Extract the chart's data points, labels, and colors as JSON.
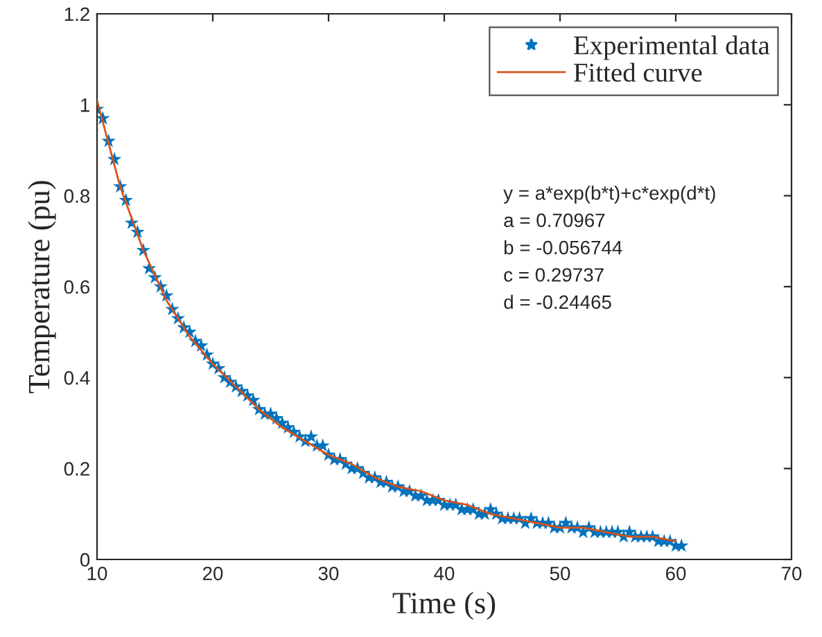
{
  "chart_data": {
    "type": "scatter",
    "xlabel": "Time (s)",
    "ylabel": "Temperature (pu)",
    "xlim": [
      10,
      70
    ],
    "ylim": [
      0,
      1.2
    ],
    "xticks": [
      10,
      20,
      30,
      40,
      50,
      60,
      70
    ],
    "yticks": [
      0,
      0.2,
      0.4,
      0.6,
      0.8,
      1,
      1.2
    ],
    "grid": false,
    "legend": "top right",
    "series": [
      {
        "name": "Experimental data",
        "marker": "star",
        "color": "#0072bd",
        "x": [
          10,
          10.5,
          11,
          11.5,
          12,
          12.5,
          13,
          13.5,
          14,
          14.5,
          15,
          15.5,
          16,
          16.5,
          17,
          17.5,
          18,
          18.5,
          19,
          19.5,
          20,
          20.5,
          21,
          21.5,
          22,
          22.5,
          23,
          23.5,
          24,
          24.5,
          25,
          25.5,
          26,
          26.5,
          27,
          27.5,
          28,
          28.5,
          29,
          29.5,
          30,
          30.5,
          31,
          31.5,
          32,
          32.5,
          33,
          33.5,
          34,
          34.5,
          35,
          35.5,
          36,
          36.5,
          37,
          37.5,
          38,
          38.5,
          39,
          39.5,
          40,
          40.5,
          41,
          41.5,
          42,
          42.5,
          43,
          43.5,
          44,
          44.5,
          45,
          45.5,
          46,
          46.5,
          47,
          47.5,
          48,
          48.5,
          49,
          49.5,
          50,
          50.5,
          51,
          51.5,
          52,
          52.5,
          53,
          53.5,
          54,
          54.5,
          55,
          55.5,
          56,
          56.5,
          57,
          57.5,
          58,
          58.5,
          59,
          59.5,
          60,
          60.5
        ],
        "values": [
          0.99,
          0.97,
          0.92,
          0.88,
          0.82,
          0.79,
          0.74,
          0.72,
          0.68,
          0.64,
          0.62,
          0.6,
          0.58,
          0.55,
          0.53,
          0.51,
          0.5,
          0.48,
          0.47,
          0.45,
          0.43,
          0.42,
          0.4,
          0.39,
          0.38,
          0.37,
          0.36,
          0.35,
          0.33,
          0.32,
          0.32,
          0.31,
          0.3,
          0.29,
          0.28,
          0.27,
          0.26,
          0.27,
          0.25,
          0.25,
          0.23,
          0.22,
          0.22,
          0.21,
          0.2,
          0.2,
          0.19,
          0.18,
          0.18,
          0.17,
          0.17,
          0.16,
          0.16,
          0.15,
          0.15,
          0.14,
          0.14,
          0.13,
          0.13,
          0.13,
          0.12,
          0.12,
          0.12,
          0.11,
          0.11,
          0.11,
          0.1,
          0.1,
          0.11,
          0.1,
          0.09,
          0.09,
          0.09,
          0.09,
          0.08,
          0.09,
          0.08,
          0.08,
          0.08,
          0.07,
          0.07,
          0.08,
          0.07,
          0.07,
          0.06,
          0.07,
          0.06,
          0.06,
          0.06,
          0.06,
          0.06,
          0.05,
          0.06,
          0.05,
          0.05,
          0.05,
          0.05,
          0.04,
          0.04,
          0.04,
          0.03,
          0.03
        ]
      },
      {
        "name": "Fitted curve",
        "type": "line",
        "marker": "none",
        "line_style": "solid",
        "color": "#d95319",
        "x": [
          10,
          12,
          14,
          16,
          18,
          20,
          22,
          24,
          26,
          28,
          30,
          32,
          34,
          36,
          38,
          40,
          42,
          44,
          46,
          48,
          50,
          52,
          54,
          56,
          58,
          60
        ],
        "values": [
          1.01,
          0.82,
          0.68,
          0.57,
          0.49,
          0.43,
          0.38,
          0.33,
          0.29,
          0.26,
          0.23,
          0.21,
          0.18,
          0.16,
          0.15,
          0.13,
          0.12,
          0.1,
          0.09,
          0.08,
          0.07,
          0.07,
          0.06,
          0.05,
          0.05,
          0.04
        ]
      }
    ],
    "annotations": [
      "y = a*exp(b*t)+c*exp(d*t)",
      "a = 0.70967",
      "b = -0.056744",
      "c = 0.29737",
      "d = -0.24465"
    ]
  }
}
